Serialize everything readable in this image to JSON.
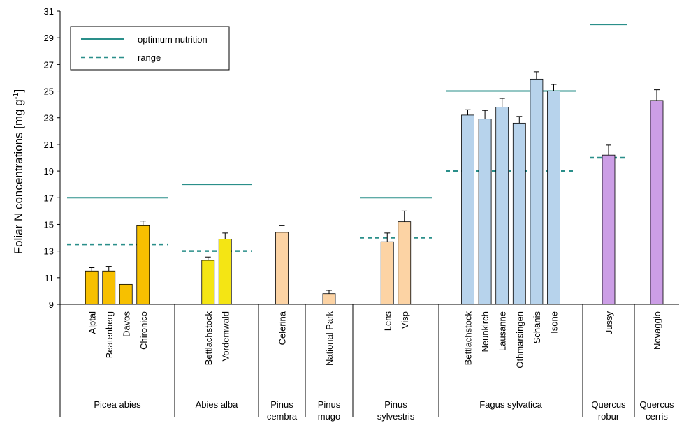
{
  "chart_data": {
    "type": "bar",
    "ylabel": "Foliar N concentrations [mg g",
    "ylabel_sup": "-1",
    "ylabel_end": "]",
    "ylim": [
      9,
      31
    ],
    "yticks": [
      9,
      11,
      13,
      15,
      17,
      19,
      21,
      23,
      25,
      27,
      29,
      31
    ],
    "legend": {
      "position": "top-left",
      "items": [
        {
          "label": "optimum nutrition",
          "style": "solid"
        },
        {
          "label": "range",
          "style": "dashed"
        }
      ]
    },
    "colors": {
      "line": "#2a8f8a",
      "Picea abies": "#f7c000",
      "Abies alba": "#f4e514",
      "Pinus": "#fcd3a4",
      "Fagus sylvatica": "#b7d3ec",
      "Quercus": "#cc9ee6"
    },
    "groups": [
      {
        "species": [
          "Picea abies"
        ],
        "sites": [
          "Alptal",
          "Beatenberg",
          "Davos",
          "Chironico"
        ],
        "values": [
          11.5,
          11.5,
          10.5,
          14.9
        ],
        "errors": [
          0.25,
          0.35,
          0,
          0.35
        ],
        "color_key": "Picea abies",
        "optimum": 17,
        "range": 13.5
      },
      {
        "species": [
          "Abies alba"
        ],
        "sites": [
          "Bettlachstock",
          "Vordemwald"
        ],
        "values": [
          12.3,
          13.9
        ],
        "errors": [
          0.25,
          0.45
        ],
        "color_key": "Abies alba",
        "optimum": 18,
        "range": 13
      },
      {
        "species": [
          "Pinus",
          "cembra"
        ],
        "sites": [
          "Celerina"
        ],
        "values": [
          14.4
        ],
        "errors": [
          0.5
        ],
        "color_key": "Pinus",
        "optimum": null,
        "range": null
      },
      {
        "species": [
          "Pinus",
          "mugo"
        ],
        "sites": [
          "National Park"
        ],
        "values": [
          9.8
        ],
        "errors": [
          0.25
        ],
        "color_key": "Pinus",
        "optimum": null,
        "range": null
      },
      {
        "species": [
          "Pinus",
          "sylvestris"
        ],
        "sites": [
          "Lens",
          "Visp"
        ],
        "values": [
          13.7,
          15.2
        ],
        "errors": [
          0.65,
          0.8
        ],
        "color_key": "Pinus",
        "optimum": 17,
        "range": 14
      },
      {
        "species": [
          "Fagus sylvatica"
        ],
        "sites": [
          "Bettlachstock",
          "Neunkirch",
          "Lausanne",
          "Othmarsingen",
          "Schänis",
          "Isone"
        ],
        "values": [
          23.2,
          22.9,
          23.8,
          22.6,
          25.9,
          25.0
        ],
        "errors": [
          0.4,
          0.65,
          0.65,
          0.5,
          0.55,
          0.5
        ],
        "color_key": "Fagus sylvatica",
        "optimum": 25,
        "range": 19
      },
      {
        "species": [
          "Quercus",
          "robur"
        ],
        "sites": [
          "Jussy"
        ],
        "values": [
          20.2
        ],
        "errors": [
          0.75
        ],
        "color_key": "Quercus",
        "optimum": 30,
        "range": 20
      },
      {
        "species": [
          "Quercus",
          "cerris"
        ],
        "sites": [
          "Novaggio"
        ],
        "values": [
          24.3
        ],
        "errors": [
          0.8
        ],
        "color_key": "Quercus",
        "optimum": null,
        "range": null
      }
    ]
  }
}
